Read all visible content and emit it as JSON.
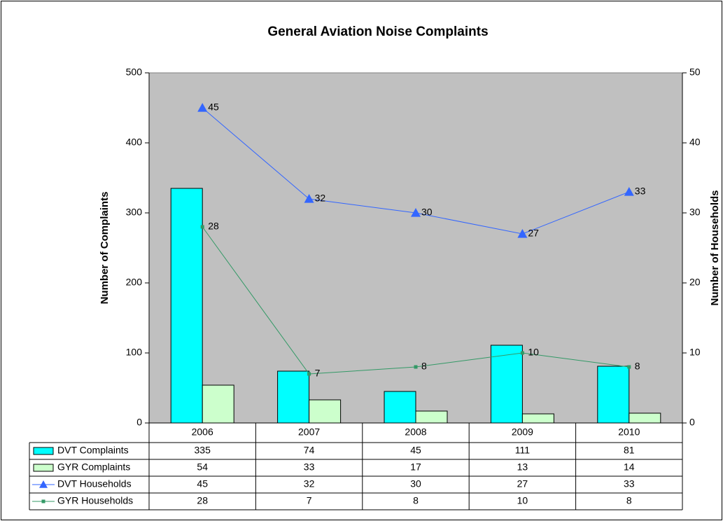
{
  "chart_data": {
    "type": "bar",
    "title": "General Aviation Noise Complaints",
    "y_label": "Number of Complaints",
    "y2_label": "Number of Households",
    "categories": [
      "2006",
      "2007",
      "2008",
      "2009",
      "2010"
    ],
    "ylim": [
      0,
      500
    ],
    "yticks": [
      0,
      100,
      200,
      300,
      400,
      500
    ],
    "y2lim": [
      0,
      50
    ],
    "y2ticks": [
      0,
      10,
      20,
      30,
      40,
      50
    ],
    "plot_background": "#c0c0c0",
    "series": [
      {
        "name": "DVT Complaints",
        "type": "bar",
        "color": "#00ffff",
        "values": [
          335,
          74,
          45,
          111,
          81
        ]
      },
      {
        "name": "GYR Complaints",
        "type": "bar",
        "color": "#ccffcc",
        "values": [
          54,
          33,
          17,
          13,
          14
        ]
      },
      {
        "name": "DVT Households",
        "type": "line",
        "axis": "y2",
        "marker": "triangle",
        "color": "#3366ff",
        "values": [
          45,
          32,
          30,
          27,
          33
        ]
      },
      {
        "name": "GYR Households",
        "type": "line",
        "axis": "y2",
        "marker": "square",
        "color": "#339966",
        "values": [
          28,
          7,
          8,
          10,
          8
        ]
      }
    ]
  }
}
